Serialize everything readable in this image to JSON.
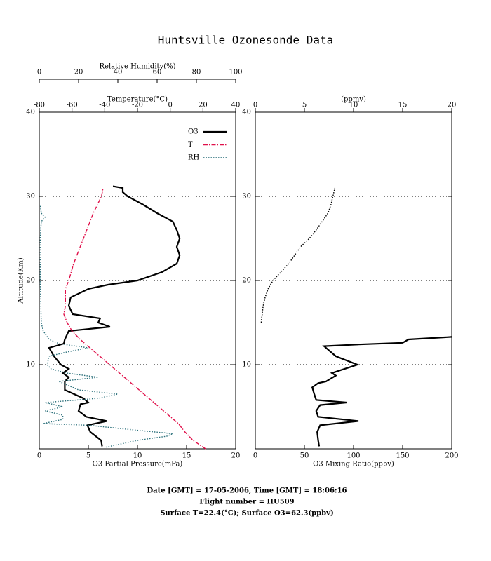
{
  "title": "Huntsville Ozonesonde Data",
  "notes": [
    "Date [GMT] = 17-05-2006,  Time [GMT] = 18:06:16",
    "Flight number = HU509",
    "Surface T=22.4(°C); Surface O3=62.3(ppbv)"
  ],
  "chart_data": [
    {
      "type": "line",
      "xlabel": "O3 Partial Pressure(mPa)",
      "xlim": [
        0,
        20
      ],
      "xticks": [
        0,
        5,
        10,
        15,
        20
      ],
      "x2label": "Temperature(°C)",
      "x2lim": [
        -80,
        40
      ],
      "x2ticks": [
        -80,
        -60,
        -40,
        -20,
        0,
        20,
        40
      ],
      "x3label": "Relative Humidity(%)",
      "x3lim": [
        0,
        100
      ],
      "x3ticks": [
        0,
        20,
        40,
        60,
        80,
        100
      ],
      "ylabel": "Altitude(Km)",
      "ylim": [
        0,
        40
      ],
      "yticks": [
        10,
        20,
        30,
        40
      ],
      "grid": true,
      "legend": "upper right",
      "series": [
        {
          "name": "O3",
          "color": "#000000",
          "style": "solid",
          "axis": "x",
          "y": [
            0.3,
            1,
            2,
            2.8,
            3.3,
            3.8,
            4.5,
            5.3,
            5.5,
            6,
            7,
            8,
            8.5,
            9,
            9.5,
            10,
            11,
            12,
            12.5,
            13,
            14,
            14.5,
            15,
            15.5,
            16,
            17,
            18,
            19,
            19.5,
            20,
            21,
            22,
            23,
            24,
            25,
            26,
            27,
            28,
            29,
            30,
            30.5,
            31,
            31.2
          ],
          "values": [
            6.4,
            6.3,
            5.2,
            4.9,
            6.9,
            4.8,
            4.0,
            4.2,
            5.0,
            4.5,
            2.6,
            2.6,
            3.0,
            2.4,
            3.0,
            2.2,
            1.5,
            1.0,
            2.5,
            2.6,
            3.0,
            7.2,
            6.0,
            6.2,
            3.4,
            3.0,
            3.2,
            5.0,
            7.0,
            10.0,
            12.5,
            14.0,
            14.3,
            14.0,
            14.3,
            14.0,
            13.6,
            12.0,
            10.6,
            9.0,
            8.5,
            8.5,
            7.5
          ]
        },
        {
          "name": "T",
          "color": "#e0104a",
          "style": "dashdot",
          "axis": "x2",
          "y": [
            0,
            1,
            2,
            3,
            4,
            5,
            6,
            7,
            8,
            9,
            10,
            11,
            12,
            13,
            14,
            15,
            16,
            17,
            18,
            19,
            20,
            22,
            24,
            26,
            28,
            30,
            31
          ],
          "values": [
            21.6,
            14,
            9,
            5,
            -1,
            -7,
            -13,
            -19,
            -25,
            -31,
            -37,
            -43,
            -49,
            -55,
            -60,
            -63,
            -65,
            -64,
            -64,
            -64,
            -62,
            -59,
            -55,
            -51,
            -47,
            -42,
            -41
          ]
        },
        {
          "name": "RH",
          "color": "#2a6f7a",
          "style": "dotted",
          "axis": "x3",
          "y": [
            0.2,
            1,
            1.5,
            1.8,
            2.2,
            2.8,
            3,
            3.5,
            4,
            4.5,
            5,
            5.5,
            6,
            6.5,
            7,
            7.5,
            8,
            8.5,
            9,
            9.5,
            10,
            11,
            11.5,
            12,
            12.5,
            13,
            14,
            15,
            20,
            25,
            27,
            27.5,
            28,
            29
          ],
          "values": [
            34,
            50,
            65,
            68,
            50,
            25,
            2,
            12,
            12,
            3,
            12,
            3,
            30,
            40,
            20,
            15,
            10,
            30,
            14,
            6,
            4,
            5,
            14,
            25,
            10,
            5,
            2,
            1,
            0.5,
            0.5,
            1,
            3,
            1,
            0.5
          ]
        }
      ]
    },
    {
      "type": "line",
      "xlabel": "O3 Mixing Ratio(ppbv)",
      "xlim": [
        0,
        200
      ],
      "xticks": [
        0,
        50,
        100,
        150,
        200
      ],
      "x2label": "(ppmv)",
      "x2lim": [
        0,
        20
      ],
      "x2ticks": [
        0,
        5,
        10,
        15,
        20
      ],
      "ylim": [
        0,
        40
      ],
      "yticks": [
        10,
        20,
        30,
        40
      ],
      "grid": true,
      "series": [
        {
          "color": "#000000",
          "style": "solid",
          "axis": "x",
          "y": [
            0.3,
            1,
            2,
            2.8,
            3.3,
            3.8,
            4.5,
            5.2,
            5.5,
            5.8,
            6.5,
            7.3,
            7.8,
            8,
            8.7,
            9,
            10,
            11,
            11.8,
            12.2,
            12.4,
            12.6,
            13,
            13.3
          ],
          "values": [
            65,
            64,
            63,
            66,
            105,
            64,
            62,
            66,
            93,
            62,
            60,
            58,
            64,
            72,
            82,
            78,
            104,
            82,
            74,
            70,
            105,
            150,
            156,
            200
          ]
        },
        {
          "color": "#000000",
          "style": "dotted",
          "axis": "x2",
          "y": [
            15,
            16,
            17,
            18,
            19,
            20,
            21,
            22,
            23,
            24,
            25,
            26,
            27,
            28,
            29,
            30,
            31
          ],
          "values": [
            0.6,
            0.7,
            0.8,
            1.0,
            1.3,
            1.8,
            2.6,
            3.4,
            4.0,
            4.6,
            5.5,
            6.2,
            6.8,
            7.4,
            7.7,
            7.9,
            8.1
          ]
        }
      ]
    }
  ]
}
